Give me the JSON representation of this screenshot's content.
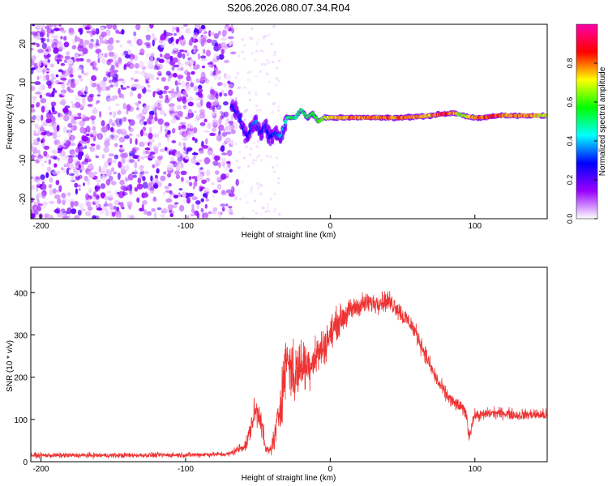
{
  "figure_title": "S206.2026.080.07.34.R04",
  "chart_data": [
    {
      "type": "heatmap",
      "title": "",
      "xlabel": "Height of straight line (km)",
      "ylabel": "Frequency (Hz)",
      "xlim": [
        -207,
        150
      ],
      "ylim": [
        -25,
        25
      ],
      "x_ticks": [
        -200,
        -100,
        0,
        100
      ],
      "y_ticks": [
        -20,
        -10,
        0,
        10,
        20
      ],
      "description_noise_region_x": [
        -207,
        -67
      ],
      "ridge": {
        "x": [
          -68,
          -64,
          -60,
          -57,
          -54,
          -51,
          -48,
          -45,
          -42,
          -38,
          -34,
          -30,
          -27,
          -24,
          -20,
          -16,
          -12,
          -8,
          -4,
          0,
          5,
          10,
          20,
          30,
          40,
          50,
          60,
          70,
          75,
          80,
          85,
          90,
          95,
          100,
          105,
          110,
          115,
          120,
          125,
          130,
          140,
          150
        ],
        "freq": [
          4,
          2,
          -2,
          -4,
          -1,
          0,
          -3,
          -1,
          -4,
          -3,
          -4,
          1,
          1,
          1,
          3,
          1,
          2,
          0,
          1,
          1,
          1,
          1,
          1,
          1,
          1,
          1,
          1.2,
          1.5,
          1.8,
          2,
          2.2,
          1.8,
          1.2,
          1,
          1,
          1.2,
          1.5,
          1.6,
          1.5,
          1.5,
          1.5,
          1.5
        ],
        "amplitude": [
          0.3,
          0.35,
          0.3,
          0.3,
          0.35,
          0.4,
          0.3,
          0.35,
          0.3,
          0.35,
          0.4,
          0.5,
          0.6,
          0.55,
          0.55,
          0.6,
          0.6,
          0.65,
          0.7,
          0.75,
          0.8,
          0.85,
          0.85,
          0.85,
          0.85,
          0.85,
          0.85,
          0.8,
          0.9,
          0.9,
          0.85,
          0.7,
          0.75,
          0.85,
          0.85,
          0.9,
          0.9,
          0.85,
          0.8,
          0.85,
          0.8,
          0.75
        ]
      },
      "colorbar": {
        "label": "Normalized spectral amplitude",
        "range": [
          0,
          1
        ],
        "ticks": [
          0.0,
          0.2,
          0.4,
          0.6,
          0.8
        ],
        "tick_labels": [
          "0.0",
          "0.2",
          "0.4",
          "0.6",
          "0.8"
        ],
        "colors": [
          "#ffffff",
          "#9900ff",
          "#0000ff",
          "#00ffff",
          "#00ff00",
          "#ffff00",
          "#ff0000",
          "#ff00aa"
        ]
      }
    },
    {
      "type": "line",
      "title": "",
      "xlabel": "Height of straight line (km)",
      "ylabel": "SNR (10 * v/v)",
      "xlim": [
        -207,
        150
      ],
      "ylim": [
        0,
        460
      ],
      "x_ticks": [
        -200,
        -100,
        0,
        100
      ],
      "y_ticks": [
        0,
        100,
        200,
        300,
        400
      ],
      "series": [
        {
          "name": "SNR",
          "color": "#ee3333",
          "x": [
            -207,
            -150,
            -100,
            -70,
            -58,
            -52,
            -48,
            -45,
            -42,
            -38,
            -34,
            -30,
            -25,
            -20,
            -15,
            -10,
            -5,
            0,
            5,
            10,
            15,
            20,
            25,
            30,
            35,
            40,
            45,
            50,
            55,
            60,
            65,
            70,
            75,
            80,
            85,
            90,
            94,
            96,
            98,
            100,
            105,
            110,
            120,
            130,
            140,
            150
          ],
          "mean": [
            15,
            15,
            16,
            18,
            40,
            120,
            110,
            30,
            25,
            60,
            150,
            250,
            200,
            230,
            230,
            250,
            270,
            300,
            330,
            345,
            360,
            370,
            375,
            375,
            380,
            380,
            370,
            345,
            330,
            300,
            260,
            220,
            185,
            160,
            140,
            130,
            115,
            60,
            90,
            110,
            110,
            115,
            115,
            110,
            112,
            110
          ],
          "noise": [
            10,
            10,
            10,
            10,
            25,
            60,
            60,
            20,
            20,
            60,
            100,
            120,
            120,
            110,
            90,
            80,
            75,
            65,
            60,
            50,
            45,
            45,
            40,
            40,
            40,
            40,
            40,
            40,
            35,
            35,
            35,
            30,
            30,
            28,
            28,
            25,
            25,
            25,
            25,
            22,
            22,
            22,
            22,
            22,
            22,
            22
          ]
        }
      ]
    }
  ]
}
